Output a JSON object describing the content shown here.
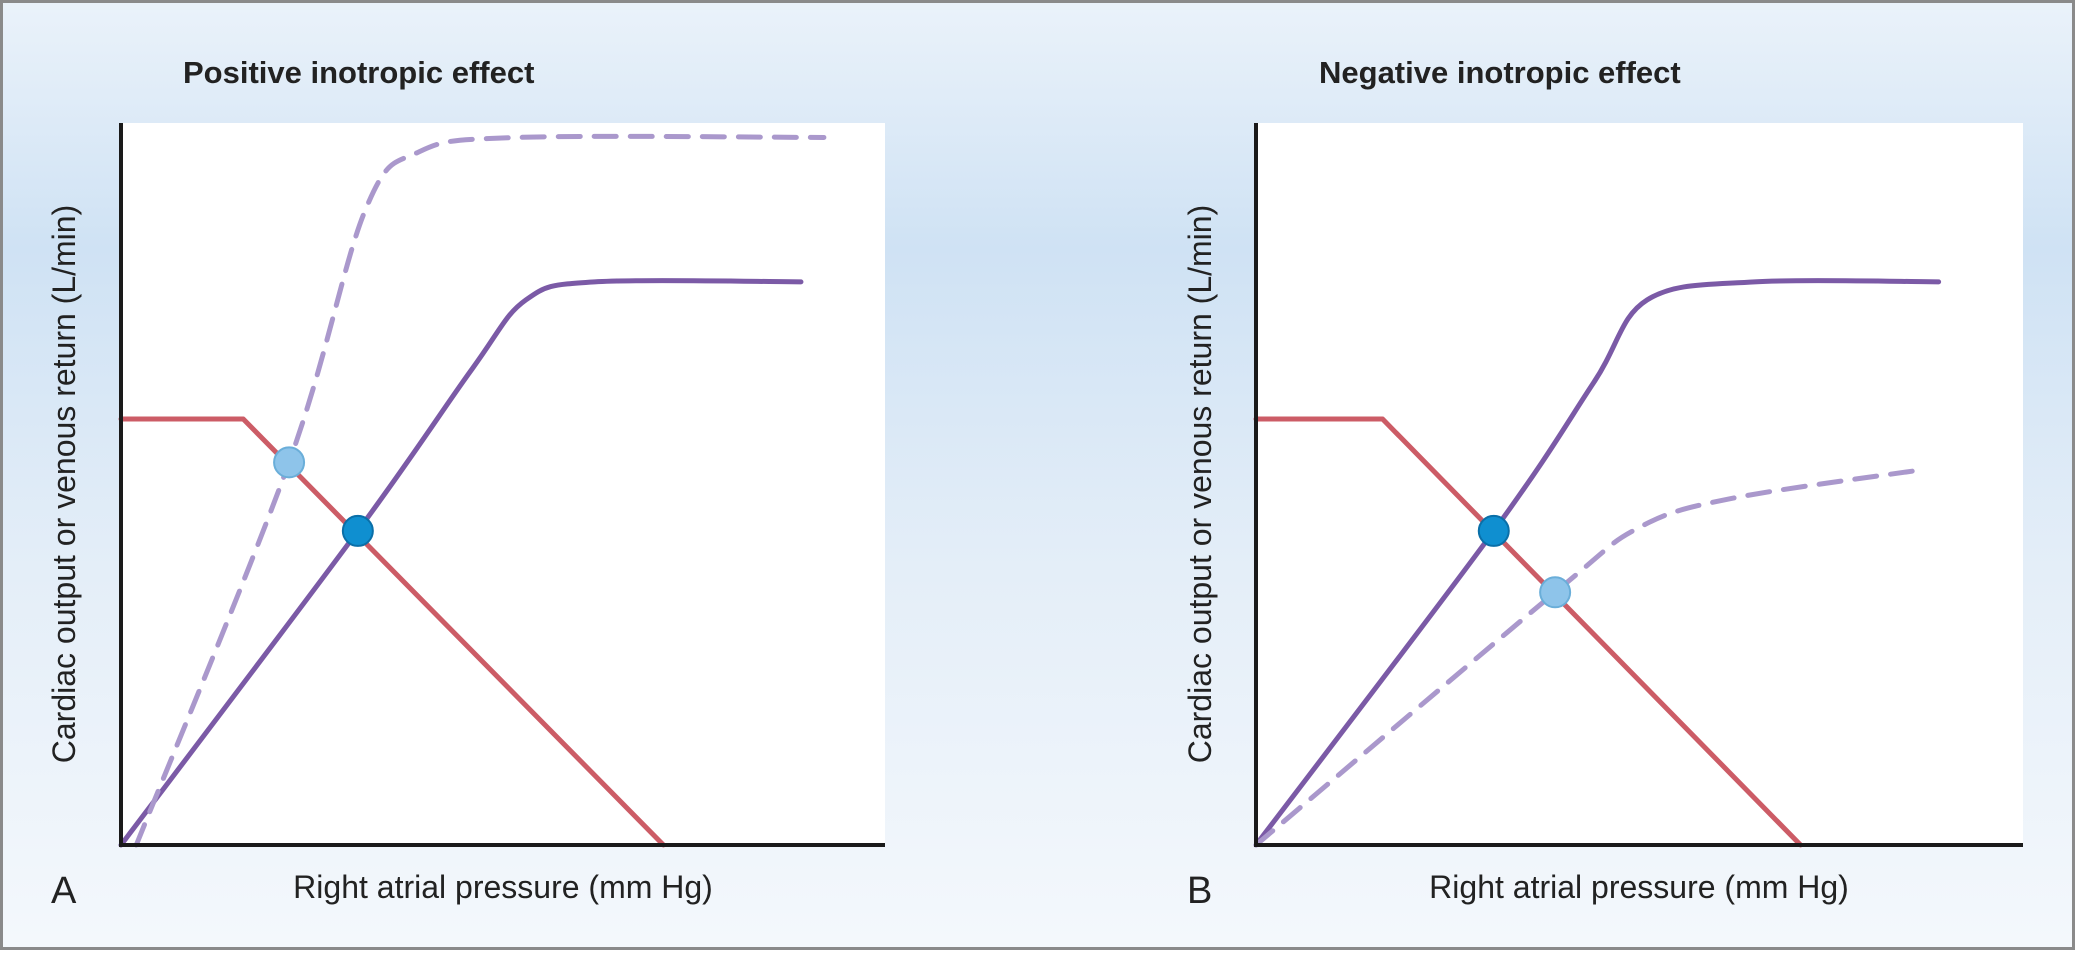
{
  "colors": {
    "venous_return": "#cc5c66",
    "cardiac_output": "#7b5aa6",
    "cardiac_output_shifted": "#aa98cc",
    "equilibrium_original": "#0f8fd0",
    "equilibrium_shifted": "#8ec4ea",
    "axis": "#1a1a1a"
  },
  "chart_data": [
    {
      "type": "line",
      "panel_label": "A",
      "title": "Positive inotropic effect",
      "xlabel": "Right atrial pressure (mm Hg)",
      "ylabel": "Cardiac output or venous return (L/min)",
      "xlim": [
        0,
        10
      ],
      "ylim": [
        0,
        10
      ],
      "grid": false,
      "series": [
        {
          "role": "venous_return",
          "style": "solid",
          "color": "#cc5c66",
          "points": [
            [
              0,
              5.9
            ],
            [
              1.6,
              5.9
            ],
            [
              7.1,
              0
            ]
          ]
        },
        {
          "role": "cardiac_output",
          "style": "solid",
          "color": "#7b5aa6",
          "points": [
            [
              0,
              0
            ],
            [
              3.1,
              4.35
            ],
            [
              4.6,
              6.6
            ],
            [
              5.3,
              7.55
            ],
            [
              6.2,
              7.8
            ],
            [
              8.9,
              7.8
            ]
          ]
        },
        {
          "role": "cardiac_output_shifted",
          "style": "dashed",
          "color": "#aa98cc",
          "points": [
            [
              0.2,
              0
            ],
            [
              2.2,
              5.3
            ],
            [
              3.2,
              8.8
            ],
            [
              3.9,
              9.6
            ],
            [
              5.2,
              9.8
            ],
            [
              9.2,
              9.8
            ]
          ]
        }
      ],
      "points": [
        {
          "role": "equilibrium_shifted",
          "x": 2.2,
          "y": 5.3,
          "color": "#8ec4ea"
        },
        {
          "role": "equilibrium_original",
          "x": 3.1,
          "y": 4.35,
          "color": "#0f8fd0"
        }
      ]
    },
    {
      "type": "line",
      "panel_label": "B",
      "title": "Negative inotropic effect",
      "xlabel": "Right atrial pressure (mm Hg)",
      "ylabel": "Cardiac output or venous return (L/min)",
      "xlim": [
        0,
        10
      ],
      "ylim": [
        0,
        10
      ],
      "grid": false,
      "series": [
        {
          "role": "venous_return",
          "style": "solid",
          "color": "#cc5c66",
          "points": [
            [
              0,
              5.9
            ],
            [
              1.65,
              5.9
            ],
            [
              7.1,
              0
            ]
          ]
        },
        {
          "role": "cardiac_output",
          "style": "solid",
          "color": "#7b5aa6",
          "points": [
            [
              0,
              0
            ],
            [
              3.1,
              4.35
            ],
            [
              4.4,
              6.4
            ],
            [
              5.1,
              7.55
            ],
            [
              6.5,
              7.8
            ],
            [
              8.9,
              7.8
            ]
          ]
        },
        {
          "role": "cardiac_output_shifted",
          "style": "dashed",
          "color": "#aa98cc",
          "points": [
            [
              0,
              0
            ],
            [
              3.9,
              3.5
            ],
            [
              5.0,
              4.4
            ],
            [
              6.2,
              4.8
            ],
            [
              8.7,
              5.2
            ]
          ]
        }
      ],
      "points": [
        {
          "role": "equilibrium_original",
          "x": 3.1,
          "y": 4.35,
          "color": "#0f8fd0"
        },
        {
          "role": "equilibrium_shifted",
          "x": 3.9,
          "y": 3.5,
          "color": "#8ec4ea"
        }
      ]
    }
  ]
}
